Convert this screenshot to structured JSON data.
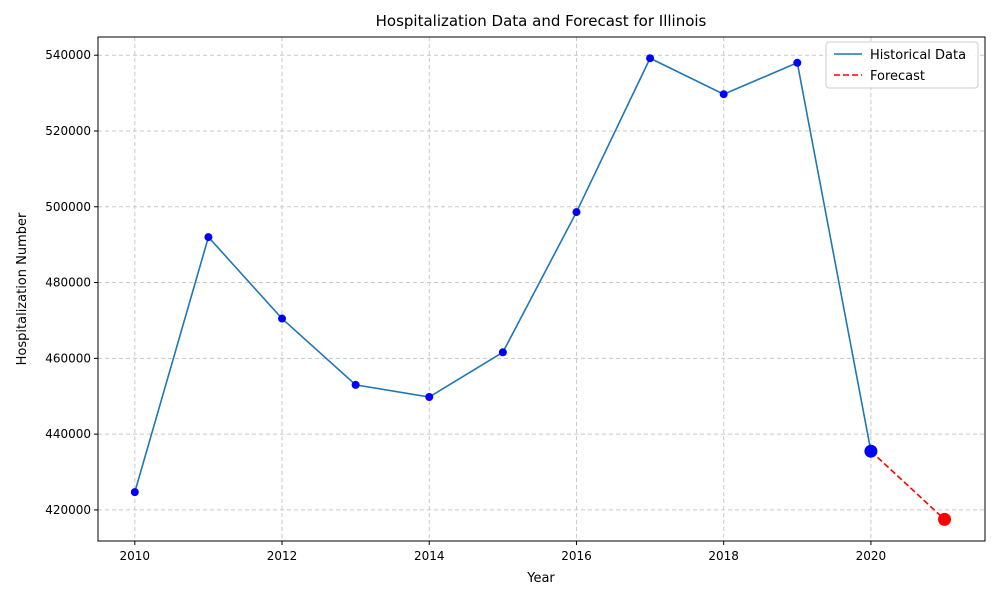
{
  "chart_data": {
    "type": "line",
    "title": "Hospitalization Data and Forecast for Illinois",
    "xlabel": "Year",
    "ylabel": "Hospitalization Number",
    "xlim": [
      2009.5,
      2021.55
    ],
    "ylim": [
      411800,
      544800
    ],
    "xticks": [
      2010,
      2012,
      2014,
      2016,
      2018,
      2020
    ],
    "yticks": [
      420000,
      440000,
      460000,
      480000,
      500000,
      520000,
      540000
    ],
    "grid": true,
    "legend_position": "top-right",
    "series": [
      {
        "name": "Historical Data",
        "style": "solid",
        "color": "#1f77b4",
        "marker_color": "#0000ff",
        "x": [
          2010,
          2011,
          2012,
          2013,
          2014,
          2015,
          2016,
          2017,
          2018,
          2019,
          2020
        ],
        "y": [
          424700,
          492000,
          470500,
          453000,
          449800,
          461600,
          498600,
          539200,
          529700,
          538000,
          435500
        ]
      },
      {
        "name": "Forecast",
        "style": "dashed",
        "color": "#ff0000",
        "marker_color": "#ff0000",
        "x": [
          2020,
          2021
        ],
        "y": [
          435500,
          417500
        ]
      }
    ]
  }
}
